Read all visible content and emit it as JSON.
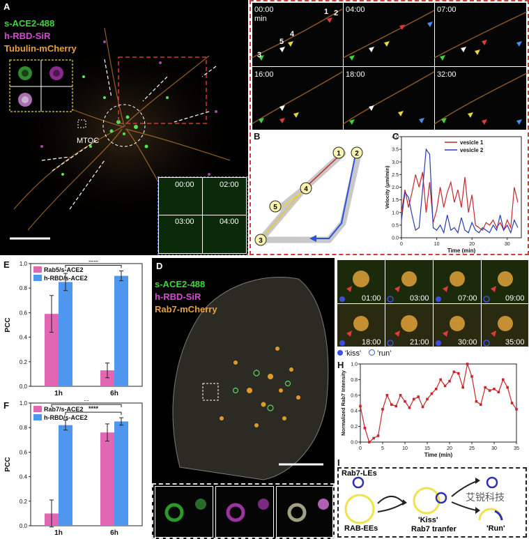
{
  "panelA": {
    "letter": "A",
    "legend": [
      "s-ACE2-488",
      "h-RBD-SiR",
      "Tubulin-mCherry"
    ],
    "legend_colors": [
      "#3ad83a",
      "#d64bd6",
      "#e8a23a"
    ],
    "mtoc": "MTOC",
    "inset_times": [
      "00:00",
      "02:00",
      "03:00",
      "04:00"
    ]
  },
  "panel_tiles": {
    "times": [
      "00:00",
      "04:00",
      "07:00",
      "16:00",
      "18:00",
      "32:00"
    ],
    "min_label": "min",
    "vesicle_numbers": [
      "1",
      "2",
      "3",
      "4",
      "5"
    ]
  },
  "panelB": {
    "letter": "B",
    "nodes": [
      "1",
      "2",
      "3",
      "4",
      "5"
    ]
  },
  "panelC": {
    "letter": "C",
    "chart_data": {
      "type": "line",
      "xlabel": "Time (min)",
      "ylabel": "Velocity (μm/min)",
      "xlim": [
        0,
        34
      ],
      "ylim": [
        0,
        4.0
      ],
      "xticks": [
        0,
        10,
        20,
        30
      ],
      "yticks": [
        0.0,
        0.5,
        1.0,
        1.5,
        2.0,
        2.5,
        3.0,
        3.5,
        4.0
      ],
      "series": [
        {
          "name": "vesicle 1",
          "color": "#c8262b",
          "x": [
            0,
            1,
            2,
            3,
            4,
            5,
            6,
            7,
            8,
            9,
            10,
            11,
            12,
            13,
            14,
            15,
            16,
            17,
            18,
            19,
            20,
            21,
            22,
            23,
            24,
            25,
            26,
            27,
            28,
            29,
            30,
            31,
            32,
            33
          ],
          "values": [
            1.0,
            1.9,
            1.2,
            1.8,
            2.5,
            2.0,
            2.6,
            1.0,
            2.2,
            0.6,
            1.1,
            2.0,
            1.2,
            1.8,
            2.2,
            1.4,
            1.9,
            1.2,
            2.4,
            1.0,
            1.7,
            0.5,
            0.4,
            0.3,
            0.6,
            0.5,
            0.7,
            0.4,
            0.6,
            0.3,
            0.7,
            0.4,
            2.0,
            1.4
          ]
        },
        {
          "name": "vesicle 2",
          "color": "#2a3bb0",
          "x": [
            0,
            1,
            2,
            3,
            4,
            5,
            6,
            7,
            8,
            9,
            10,
            11,
            12,
            13,
            14,
            15,
            16,
            17,
            18,
            19,
            20,
            21,
            22,
            23,
            24,
            25,
            26,
            27,
            28,
            29,
            30,
            31,
            32,
            33
          ],
          "values": [
            0.7,
            1.8,
            1.6,
            0.9,
            0.3,
            0.4,
            1.9,
            3.5,
            3.3,
            0.4,
            0.3,
            0.5,
            0.2,
            0.9,
            0.3,
            0.4,
            0.2,
            0.8,
            0.3,
            0.2,
            0.6,
            0.3,
            0.2,
            0.4,
            0.3,
            0.2,
            0.5,
            0.3,
            0.9,
            0.3,
            0.5,
            0.2,
            0.7,
            0.4
          ]
        }
      ]
    }
  },
  "panelD": {
    "letter": "D",
    "legend": [
      "s-ACE2-488",
      "h-RBD-SiR",
      "Rab7-mCherry"
    ],
    "legend_colors": [
      "#3ad83a",
      "#d64bd6",
      "#e8a23a"
    ]
  },
  "panelE": {
    "letter": "E",
    "chart_data": {
      "type": "bar",
      "categories": [
        "1h",
        "6h"
      ],
      "ylabel": "PCC",
      "ylim": [
        0,
        1.0
      ],
      "yticks": [
        0.0,
        0.2,
        0.4,
        0.6,
        0.8,
        1.0
      ],
      "series": [
        {
          "name": "Rab5/s-ACE2",
          "color": "#e166b4",
          "values": [
            0.59,
            0.13
          ],
          "errors": [
            0.15,
            0.06
          ]
        },
        {
          "name": "h-RBD/s-ACE2",
          "color": "#4f97ee",
          "values": [
            0.85,
            0.9
          ],
          "errors": [
            0.07,
            0.04
          ]
        }
      ],
      "annotations": [
        "*",
        "****"
      ]
    }
  },
  "panelF": {
    "letter": "F",
    "chart_data": {
      "type": "bar",
      "categories": [
        "1h",
        "6h"
      ],
      "ylabel": "PCC",
      "ylim": [
        0,
        1.0
      ],
      "yticks": [
        0.0,
        0.2,
        0.4,
        0.6,
        0.8,
        1.0
      ],
      "series": [
        {
          "name": "Rab7/s-ACE2",
          "color": "#e166b4",
          "values": [
            0.1,
            0.76
          ],
          "errors": [
            0.11,
            0.07
          ]
        },
        {
          "name": "h-RBD/s-ACE2",
          "color": "#4f97ee",
          "values": [
            0.82,
            0.85
          ],
          "errors": [
            0.04,
            0.03
          ]
        }
      ],
      "annotations": [
        "**",
        "****"
      ]
    }
  },
  "panelG": {
    "letter": "G",
    "times": [
      "01:00",
      "03:00",
      "07:00",
      "09:00",
      "18:00",
      "21:00",
      "30:00",
      "35:00"
    ],
    "legend": [
      "'kiss'",
      "'run'"
    ]
  },
  "panelH": {
    "letter": "H",
    "chart_data": {
      "type": "line",
      "xlabel": "Time (min)",
      "ylabel": "Normalized Rab7 Intensity",
      "xlim": [
        0,
        35
      ],
      "ylim": [
        0,
        1.0
      ],
      "xticks": [
        0,
        5,
        10,
        15,
        20,
        25,
        30,
        35
      ],
      "yticks": [
        0.0,
        0.2,
        0.4,
        0.6,
        0.8,
        1.0
      ],
      "series": [
        {
          "name": "",
          "color": "#c8262b",
          "x": [
            0,
            1,
            2,
            3,
            4,
            5,
            6,
            7,
            8,
            9,
            10,
            11,
            12,
            13,
            14,
            15,
            16,
            17,
            18,
            19,
            20,
            21,
            22,
            23,
            24,
            25,
            26,
            27,
            28,
            29,
            30,
            31,
            32,
            33,
            34,
            35
          ],
          "values": [
            0.46,
            0.18,
            0.0,
            0.05,
            0.08,
            0.42,
            0.6,
            0.48,
            0.46,
            0.6,
            0.52,
            0.44,
            0.55,
            0.58,
            0.45,
            0.55,
            0.62,
            0.68,
            0.8,
            0.72,
            0.78,
            0.9,
            0.88,
            0.7,
            1.0,
            0.84,
            0.52,
            0.48,
            0.7,
            0.66,
            0.68,
            0.64,
            0.8,
            0.7,
            0.5,
            0.42
          ]
        }
      ]
    }
  },
  "panelI": {
    "letter": "I",
    "labels": [
      "Rab7-LEs",
      "RAB-EEs",
      "'Kiss'",
      "Rab7 tranfer",
      "'Run'"
    ],
    "watermark": "艾锐科技"
  }
}
